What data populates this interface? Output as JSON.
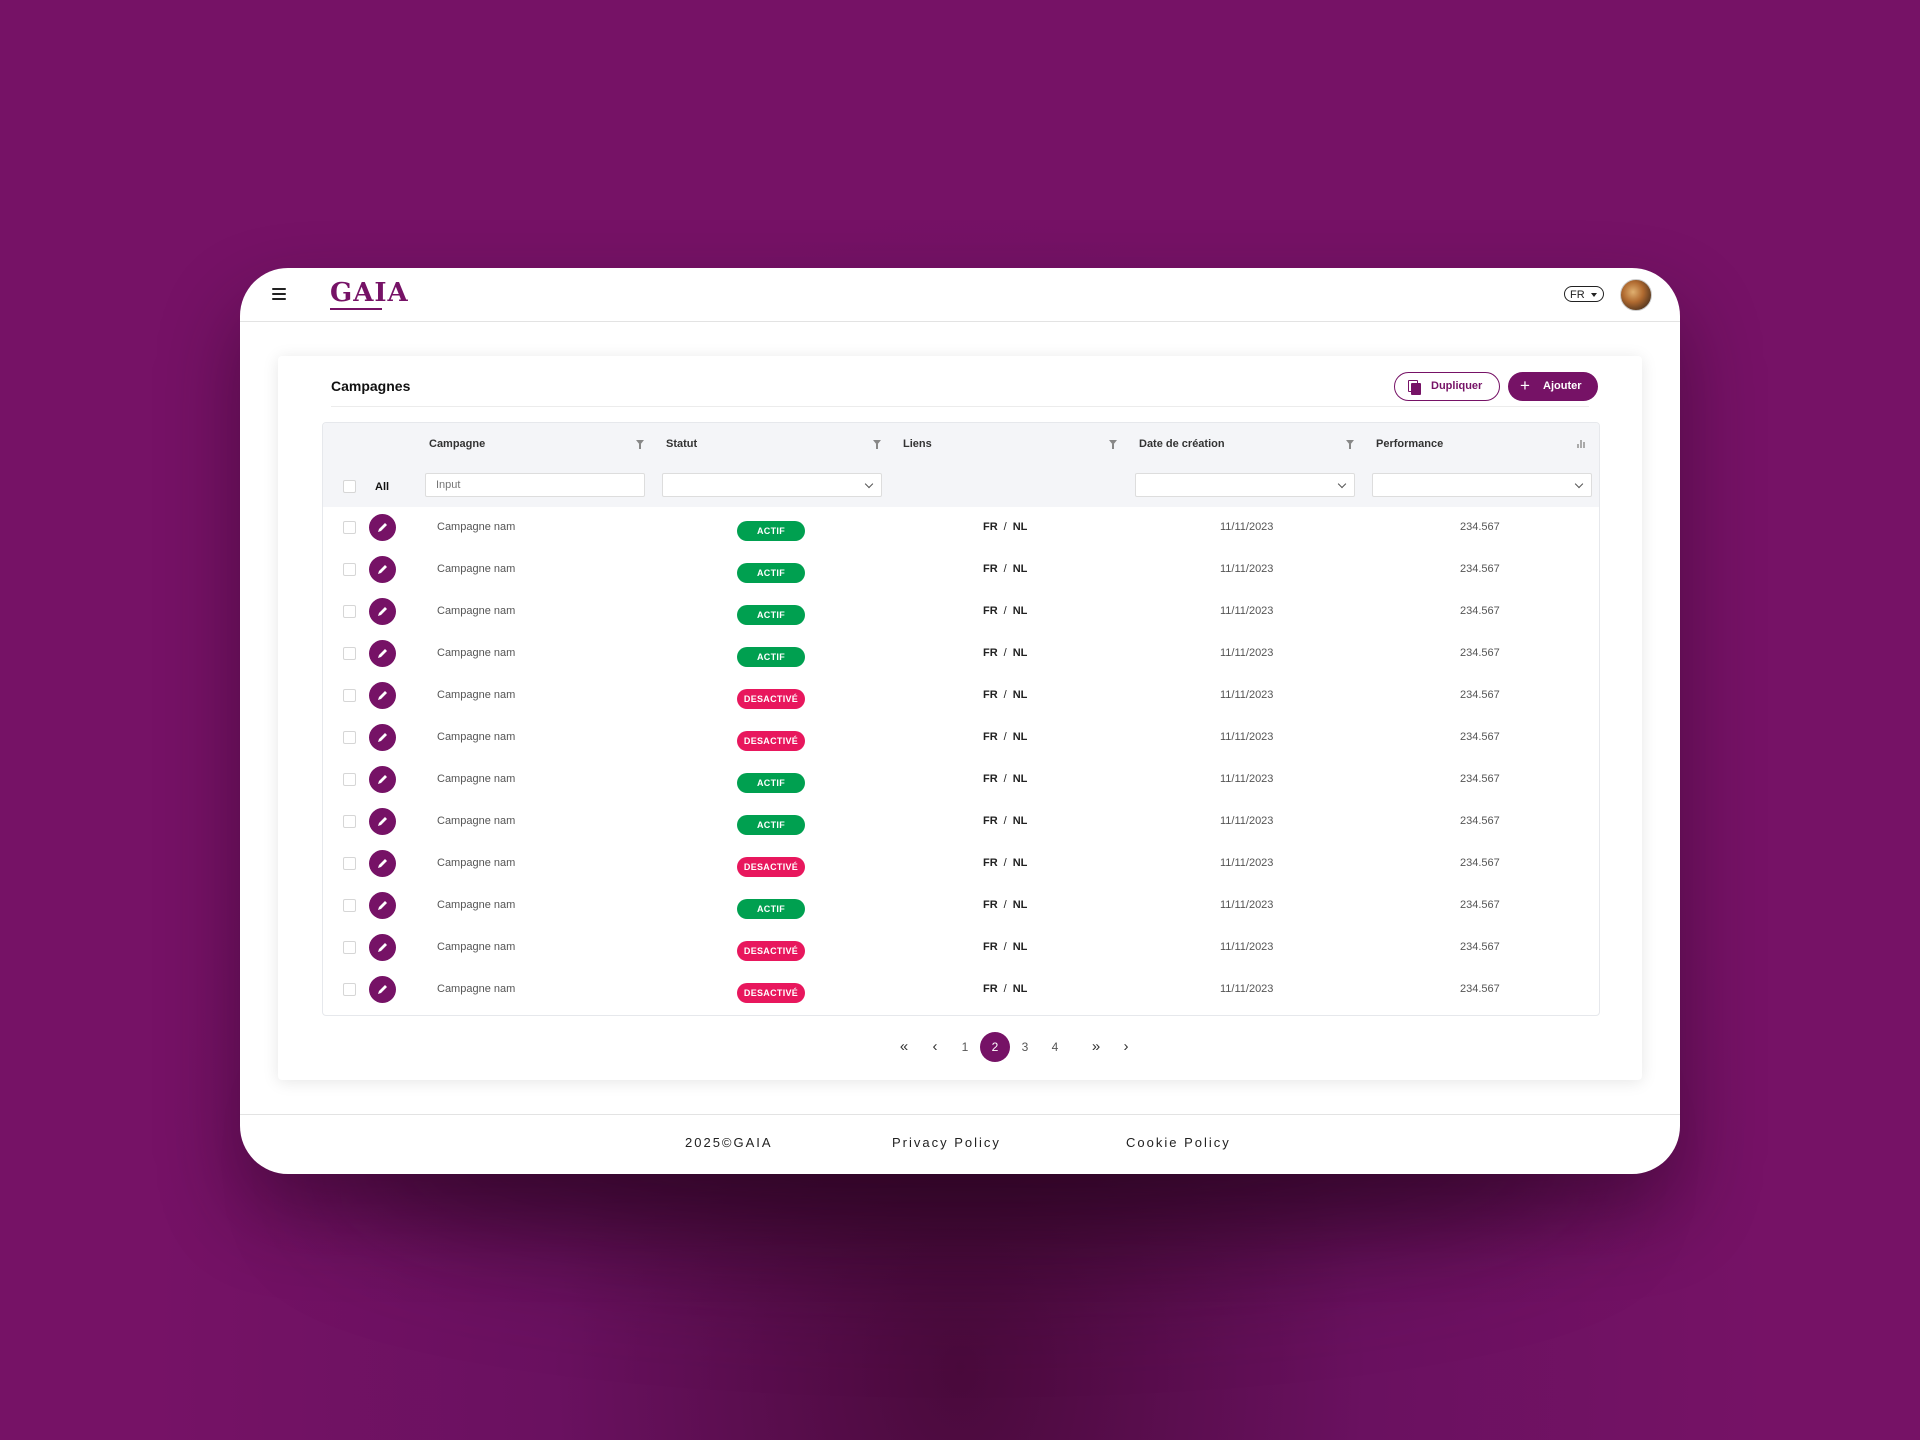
{
  "header": {
    "logo_text": "GAIA",
    "language": "FR"
  },
  "page": {
    "title": "Campagnes",
    "duplicate_label": "Dupliquer",
    "add_label": "Ajouter"
  },
  "table": {
    "columns": [
      "Campagne",
      "Statut",
      "Liens",
      "Date de création",
      "Performance"
    ],
    "select_all_label": "All",
    "campaign_filter_placeholder": "Input",
    "rows": [
      {
        "name": "Campagne nam",
        "status": "ACTIF",
        "active": true,
        "link_a": "FR",
        "link_b": "NL",
        "date": "11/11/2023",
        "performance": "234.567"
      },
      {
        "name": "Campagne nam",
        "status": "ACTIF",
        "active": true,
        "link_a": "FR",
        "link_b": "NL",
        "date": "11/11/2023",
        "performance": "234.567"
      },
      {
        "name": "Campagne nam",
        "status": "ACTIF",
        "active": true,
        "link_a": "FR",
        "link_b": "NL",
        "date": "11/11/2023",
        "performance": "234.567"
      },
      {
        "name": "Campagne nam",
        "status": "ACTIF",
        "active": true,
        "link_a": "FR",
        "link_b": "NL",
        "date": "11/11/2023",
        "performance": "234.567"
      },
      {
        "name": "Campagne nam",
        "status": "DESACTIVÉ",
        "active": false,
        "link_a": "FR",
        "link_b": "NL",
        "date": "11/11/2023",
        "performance": "234.567"
      },
      {
        "name": "Campagne nam",
        "status": "DESACTIVÉ",
        "active": false,
        "link_a": "FR",
        "link_b": "NL",
        "date": "11/11/2023",
        "performance": "234.567"
      },
      {
        "name": "Campagne nam",
        "status": "ACTIF",
        "active": true,
        "link_a": "FR",
        "link_b": "NL",
        "date": "11/11/2023",
        "performance": "234.567"
      },
      {
        "name": "Campagne nam",
        "status": "ACTIF",
        "active": true,
        "link_a": "FR",
        "link_b": "NL",
        "date": "11/11/2023",
        "performance": "234.567"
      },
      {
        "name": "Campagne nam",
        "status": "DESACTIVÉ",
        "active": false,
        "link_a": "FR",
        "link_b": "NL",
        "date": "11/11/2023",
        "performance": "234.567"
      },
      {
        "name": "Campagne nam",
        "status": "ACTIF",
        "active": true,
        "link_a": "FR",
        "link_b": "NL",
        "date": "11/11/2023",
        "performance": "234.567"
      },
      {
        "name": "Campagne nam",
        "status": "DESACTIVÉ",
        "active": false,
        "link_a": "FR",
        "link_b": "NL",
        "date": "11/11/2023",
        "performance": "234.567"
      },
      {
        "name": "Campagne nam",
        "status": "DESACTIVÉ",
        "active": false,
        "link_a": "FR",
        "link_b": "NL",
        "date": "11/11/2023",
        "performance": "234.567"
      }
    ]
  },
  "pagination": {
    "pages": [
      "1",
      "2",
      "3",
      "4"
    ],
    "current_page": "2"
  },
  "footer": {
    "copyright": "2025©GAIA",
    "privacy": "Privacy Policy",
    "cookie": "Cookie Policy"
  },
  "colors": {
    "brand": "#761266",
    "active": "#00a050",
    "inactive": "#e8175d"
  },
  "icons": [
    "menu-icon",
    "duplicate-icon",
    "plus-icon",
    "filter-icon",
    "sort-icon",
    "chevron-down-icon",
    "pencil-icon",
    "double-chevron-left-icon",
    "chevron-left-icon",
    "double-chevron-right-icon",
    "chevron-right-icon"
  ]
}
